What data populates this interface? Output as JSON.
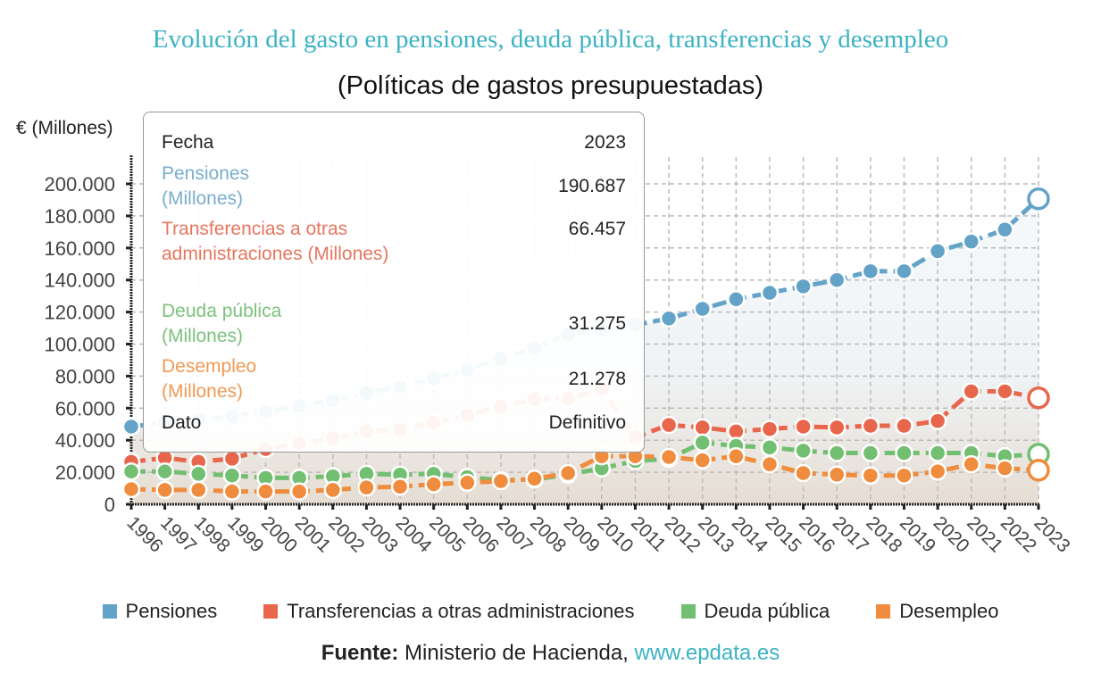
{
  "title": "Evolución del gasto en pensiones, deuda pública, transferencias y desempleo",
  "subtitle": "(Políticas de gastos presupuestadas)",
  "colors": {
    "title": "#3bb3c3",
    "pensiones": "#64a3c8",
    "transferencias": "#e8664b",
    "deuda": "#72bf72",
    "desempleo": "#ef8c3e"
  },
  "tooltip": {
    "fecha_label": "Fecha",
    "fecha_value": "2023",
    "rows": [
      {
        "label": "Pensiones (Millones)",
        "value": "190.687"
      },
      {
        "label": "Transferencias a otras administraciones (Millones)",
        "value": "66.457"
      },
      {
        "label": "Deuda pública (Millones)",
        "value": "31.275"
      },
      {
        "label": "Desempleo (Millones)",
        "value": "21.278"
      }
    ],
    "dato_label": "Dato",
    "dato_value": "Definitivo"
  },
  "legend": [
    {
      "label": "Pensiones",
      "key": "pensiones"
    },
    {
      "label": "Transferencias a otras administraciones",
      "key": "transferencias"
    },
    {
      "label": "Deuda pública",
      "key": "deuda"
    },
    {
      "label": "Desempleo",
      "key": "desempleo"
    }
  ],
  "source": {
    "label": "Fuente:",
    "text": " Ministerio de Hacienda, ",
    "link": "www.epdata.es"
  },
  "chart_data": {
    "type": "line",
    "title": "Evolución del gasto en pensiones, deuda pública, transferencias y desempleo",
    "subtitle": "(Políticas de gastos presupuestadas)",
    "xlabel": "",
    "ylabel": "€ (Millones)",
    "ylim": [
      0,
      200000
    ],
    "yticks": [
      0,
      20000,
      40000,
      60000,
      80000,
      100000,
      120000,
      140000,
      160000,
      180000,
      200000
    ],
    "ytick_labels": [
      "0",
      "20.000",
      "40.000",
      "60.000",
      "80.000",
      "100.000",
      "120.000",
      "140.000",
      "160.000",
      "180.000",
      "200.000"
    ],
    "grid": true,
    "legend_position": "bottom",
    "x": [
      "1996",
      "1997",
      "1998",
      "1999",
      "2000",
      "2001",
      "2002",
      "2003",
      "2004",
      "2005",
      "2006",
      "2007",
      "2008",
      "2009",
      "2010",
      "2011",
      "2012",
      "2013",
      "2014",
      "2015",
      "2016",
      "2017",
      "2018",
      "2019",
      "2020",
      "2021",
      "2022",
      "2023"
    ],
    "series": [
      {
        "name": "Pensiones",
        "key": "pensiones",
        "values": [
          48500,
          51000,
          53000,
          55000,
          58000,
          61500,
          65000,
          69500,
          73500,
          78500,
          84000,
          91000,
          97500,
          106000,
          109000,
          112000,
          116000,
          122000,
          128000,
          132000,
          136000,
          140000,
          145500,
          145500,
          158000,
          164000,
          171500,
          190687
        ]
      },
      {
        "name": "Transferencias a otras administraciones",
        "key": "transferencias",
        "values": [
          26500,
          29000,
          26500,
          28500,
          34500,
          38000,
          41000,
          45500,
          46500,
          51000,
          55500,
          61000,
          65500,
          66000,
          72000,
          42000,
          49500,
          48000,
          45500,
          47000,
          48500,
          48000,
          49000,
          49000,
          52000,
          70500,
          70500,
          66457
        ]
      },
      {
        "name": "Deuda pública",
        "key": "deuda",
        "values": [
          20500,
          20500,
          19000,
          18000,
          16500,
          16500,
          17500,
          19000,
          18500,
          19000,
          17000,
          15000,
          15500,
          18500,
          22500,
          27000,
          28500,
          38500,
          36500,
          35500,
          33500,
          32000,
          32000,
          32000,
          32000,
          32000,
          30000,
          31275
        ]
      },
      {
        "name": "Desempleo",
        "key": "desempleo",
        "values": [
          9500,
          9000,
          9000,
          8000,
          8000,
          8000,
          9000,
          10500,
          11000,
          12500,
          13500,
          14500,
          16000,
          19500,
          30000,
          30000,
          29500,
          27500,
          30000,
          25000,
          19500,
          18500,
          18000,
          18000,
          20500,
          25000,
          22500,
          21278
        ]
      }
    ],
    "highlighted_x": "2023",
    "annotations": []
  }
}
